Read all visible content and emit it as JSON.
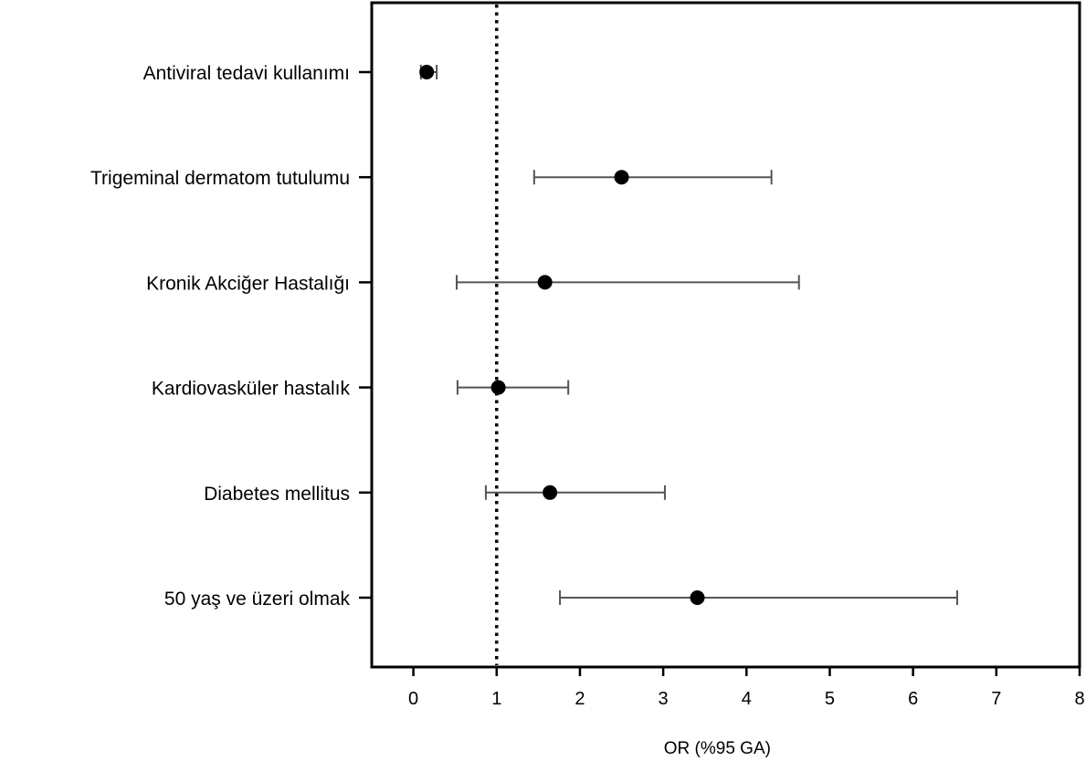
{
  "chart_data": {
    "type": "forest",
    "title": "",
    "xlabel": "OR (%95 GA)",
    "ylabel": "",
    "xlim": [
      -0.5,
      8
    ],
    "xticks": [
      0,
      1,
      2,
      3,
      4,
      5,
      6,
      7,
      8
    ],
    "xtick_labels": [
      "0",
      "1",
      "2",
      "3",
      "4",
      "5",
      "6",
      "7",
      "8"
    ],
    "reference_line": 1,
    "grid": false,
    "legend": "none",
    "categories": [
      "Antiviral tedavi kullanımı",
      "Trigeminal dermatom tutulumu",
      "Kronik Akciğer Hastalığı",
      "Kardiovasküler hastalık",
      "Diabetes mellitus",
      "50 yaş ve üzeri olmak"
    ],
    "or": [
      0.16,
      2.5,
      1.58,
      1.02,
      1.64,
      3.41
    ],
    "ci_lower": [
      0.09,
      1.45,
      0.52,
      0.53,
      0.87,
      1.76
    ],
    "ci_upper": [
      0.28,
      4.3,
      4.63,
      1.86,
      3.02,
      6.53
    ],
    "colors": {
      "point": "#000000",
      "errorbar": "#555555",
      "axis": "#000000"
    }
  }
}
